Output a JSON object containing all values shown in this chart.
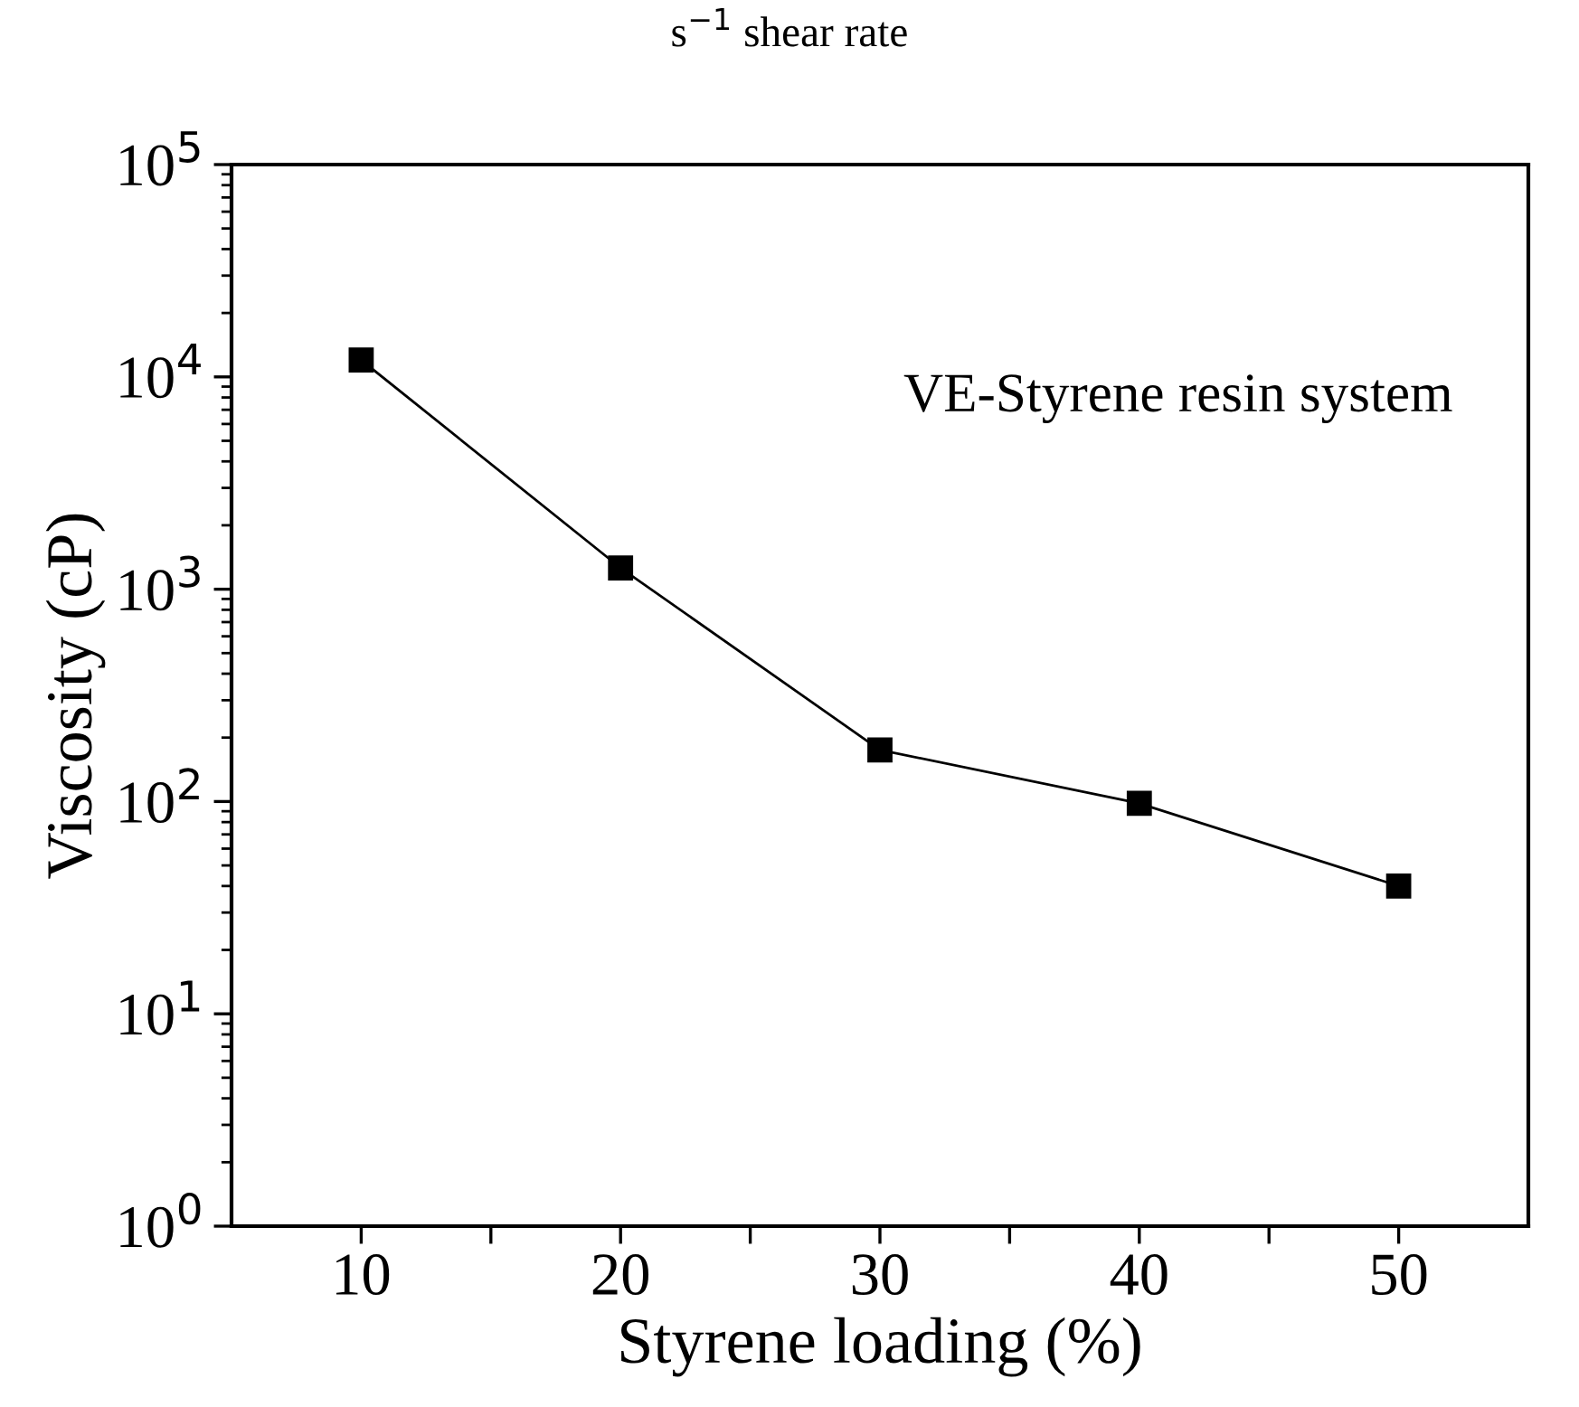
{
  "chart_data": {
    "type": "line",
    "title": "s$^{−1}$ shear rate",
    "xlabel": "Styrene loading (%)",
    "ylabel": "Viscosity (cP)",
    "x": [
      10,
      20,
      30,
      40,
      50
    ],
    "series": [
      {
        "color": "#000000",
        "values": [
          12000,
          1260,
          175,
          98,
          40
        ]
      }
    ],
    "marker": "square",
    "line_style": "solid",
    "log": "y",
    "grid": false,
    "legend": false,
    "xlim": [
      5,
      55
    ],
    "xticks": [
      10,
      {
        "value": 15,
        "label": null
      },
      20,
      {
        "value": 25,
        "label": null
      },
      30,
      {
        "value": 35,
        "label": null
      },
      40,
      {
        "value": 45,
        "label": null
      },
      50
    ],
    "ylim": [
      1,
      100000
    ],
    "yticks": [
      {
        "value": 1,
        "label": "10$^{0}$"
      },
      {
        "value": 10,
        "label": "10$^{1}$"
      },
      {
        "value": 100,
        "label": "10$^{2}$"
      },
      {
        "value": 1000,
        "label": "10$^{3}$"
      },
      {
        "value": 10000,
        "label": "10$^{4}$"
      },
      {
        "value": 100000,
        "label": "10$^{5}$"
      }
    ],
    "annotations": [
      "VE-Styrene resin system"
    ]
  }
}
